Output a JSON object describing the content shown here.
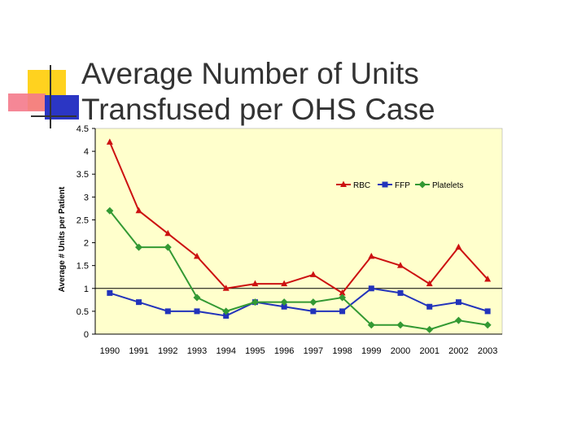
{
  "slide": {
    "title_line1": "Average Number of Units",
    "title_line2": "Transfused per OHS Case"
  },
  "colors": {
    "plot_bg": "#ffffcc",
    "rbc": "#cc1111",
    "ffp": "#2233bb",
    "platelets": "#339933"
  },
  "chart_data": {
    "type": "line",
    "ylabel": "Average # Units per Patient",
    "xlabel": "",
    "ylim": [
      0,
      4.5
    ],
    "yticks": [
      "0",
      "0.5",
      "1",
      "1.5",
      "2",
      "2.5",
      "3",
      "3.5",
      "4",
      "4.5"
    ],
    "grid": "horizontal line at 1",
    "legend_position": "top-right",
    "categories": [
      "1990",
      "1991",
      "1992",
      "1993",
      "1994",
      "1995",
      "1996",
      "1997",
      "1998",
      "1999",
      "2000",
      "2001",
      "2002",
      "2003"
    ],
    "series": [
      {
        "name": "RBC",
        "marker": "triangle",
        "color": "#cc1111",
        "values": [
          4.2,
          2.7,
          2.2,
          1.7,
          1.0,
          1.1,
          1.1,
          1.3,
          0.9,
          1.7,
          1.5,
          1.1,
          1.9,
          1.2
        ]
      },
      {
        "name": "FFP",
        "marker": "square",
        "color": "#2233bb",
        "values": [
          0.9,
          0.7,
          0.5,
          0.5,
          0.4,
          0.7,
          0.6,
          0.5,
          0.5,
          1.0,
          0.9,
          0.6,
          0.7,
          0.5
        ]
      },
      {
        "name": "Platelets",
        "marker": "diamond",
        "color": "#339933",
        "values": [
          2.7,
          1.9,
          1.9,
          0.8,
          0.5,
          0.7,
          0.7,
          0.7,
          0.8,
          0.2,
          0.2,
          0.1,
          0.3,
          0.2
        ]
      }
    ]
  }
}
